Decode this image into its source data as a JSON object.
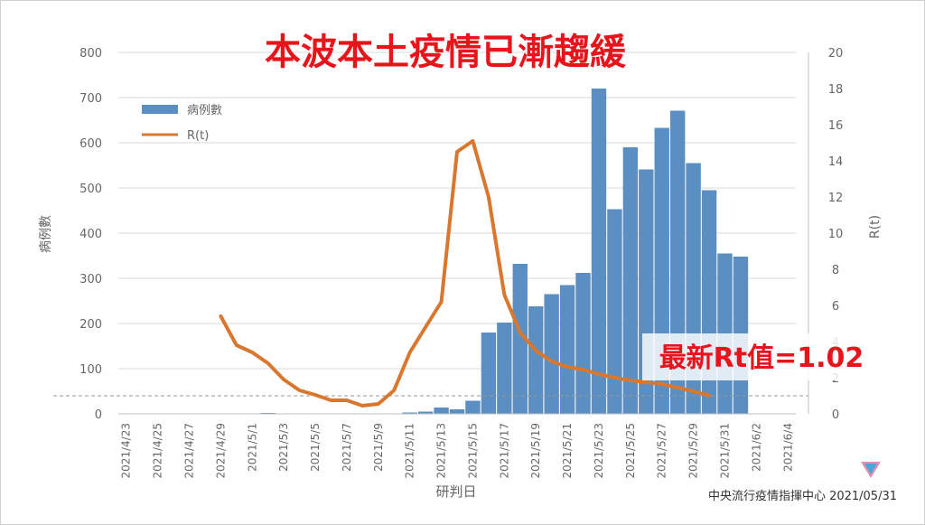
{
  "headline": "本波本土疫情已漸趨緩",
  "annotation": "最新Rt值=1.02",
  "source": "中央流行疫情指揮中心 2021/05/31",
  "colors": {
    "bar": "#5b8fc2",
    "line": "#d9772f",
    "headline": "#e8141c",
    "annotation": "#e8141c",
    "axis_text": "#666666",
    "grid": "#d9d9d9",
    "threshold": "#999999"
  },
  "chart_data": {
    "type": "bar",
    "xlabel": "研判日",
    "ylabel": "病例數",
    "y2label": "R(t)",
    "ylim": [
      0,
      800
    ],
    "y2lim": [
      0,
      20
    ],
    "yticks": [
      0,
      100,
      200,
      300,
      400,
      500,
      600,
      700,
      800
    ],
    "y2ticks": [
      0,
      2,
      4,
      6,
      8,
      10,
      12,
      14,
      16,
      18,
      20
    ],
    "xticks": [
      "2021/4/23",
      "2021/4/25",
      "2021/4/27",
      "2021/4/29",
      "2021/5/1",
      "2021/5/3",
      "2021/5/5",
      "2021/5/7",
      "2021/5/9",
      "2021/5/11",
      "2021/5/13",
      "2021/5/15",
      "2021/5/17",
      "2021/5/19",
      "2021/5/21",
      "2021/5/23",
      "2021/5/25",
      "2021/5/27",
      "2021/5/29",
      "2021/5/31",
      "2021/6/2",
      "2021/6/4"
    ],
    "grid": true,
    "legend_position": "top-left",
    "threshold_r": 1,
    "x": [
      "2021/4/23",
      "2021/4/24",
      "2021/4/25",
      "2021/4/26",
      "2021/4/27",
      "2021/4/28",
      "2021/4/29",
      "2021/4/30",
      "2021/5/1",
      "2021/5/2",
      "2021/5/3",
      "2021/5/4",
      "2021/5/5",
      "2021/5/6",
      "2021/5/7",
      "2021/5/8",
      "2021/5/9",
      "2021/5/10",
      "2021/5/11",
      "2021/5/12",
      "2021/5/13",
      "2021/5/14",
      "2021/5/15",
      "2021/5/16",
      "2021/5/17",
      "2021/5/18",
      "2021/5/19",
      "2021/5/20",
      "2021/5/21",
      "2021/5/22",
      "2021/5/23",
      "2021/5/24",
      "2021/5/25",
      "2021/5/26",
      "2021/5/27",
      "2021/5/28",
      "2021/5/29",
      "2021/5/30",
      "2021/5/31",
      "2021/6/1",
      "2021/6/2",
      "2021/6/3",
      "2021/6/4"
    ],
    "series": [
      {
        "name": "病例數",
        "type": "bar",
        "axis": "left",
        "values": [
          0,
          0,
          0,
          0,
          0,
          1,
          0,
          1,
          0,
          2,
          0,
          0,
          0,
          0,
          0,
          0,
          0,
          1,
          3,
          5,
          14,
          10,
          29,
          180,
          202,
          332,
          238,
          265,
          285,
          312,
          720,
          453,
          590,
          541,
          633,
          671,
          555,
          495,
          355,
          348,
          0,
          0,
          0
        ]
      },
      {
        "name": "R(t)",
        "type": "line",
        "axis": "right",
        "x": [
          "2021/4/29",
          "2021/4/30",
          "2021/5/1",
          "2021/5/2",
          "2021/5/3",
          "2021/5/4",
          "2021/5/5",
          "2021/5/6",
          "2021/5/7",
          "2021/5/8",
          "2021/5/9",
          "2021/5/10",
          "2021/5/11",
          "2021/5/12",
          "2021/5/13",
          "2021/5/14",
          "2021/5/15",
          "2021/5/16",
          "2021/5/17",
          "2021/5/18",
          "2021/5/19",
          "2021/5/20",
          "2021/5/21",
          "2021/5/22",
          "2021/5/23",
          "2021/5/24",
          "2021/5/25",
          "2021/5/26",
          "2021/5/27",
          "2021/5/28",
          "2021/5/29",
          "2021/5/30"
        ],
        "values": [
          5.4,
          3.8,
          3.4,
          2.8,
          1.9,
          1.3,
          1.05,
          0.75,
          0.75,
          0.45,
          0.55,
          1.3,
          3.4,
          4.8,
          6.2,
          14.5,
          15.1,
          12.0,
          6.6,
          4.5,
          3.5,
          2.9,
          2.6,
          2.45,
          2.2,
          2.0,
          1.85,
          1.75,
          1.65,
          1.45,
          1.25,
          1.02
        ]
      }
    ]
  }
}
